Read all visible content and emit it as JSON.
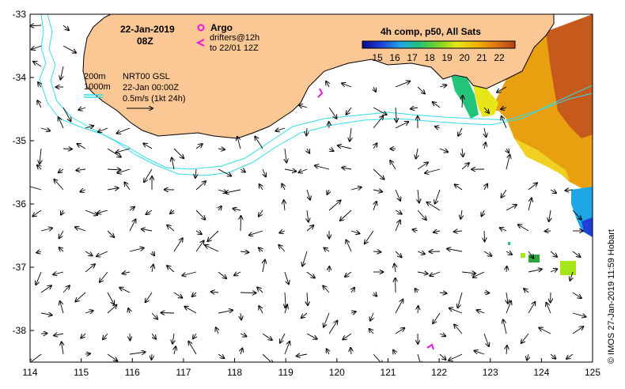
{
  "map": {
    "date": "22-Jan-2019",
    "time": "08Z",
    "legend": {
      "argo_label": "Argo",
      "drifters_line1": "drifters@12h",
      "drifters_line2": "to 22/01 12Z",
      "depth_200": "200m",
      "depth_1000": "1000m",
      "nrt_line1": "NRT00 GSL",
      "nrt_line2": "22-Jan 00:00Z",
      "speed_scale": "0.5m/s (1kt 24h)"
    },
    "colorbar": {
      "title": "4h comp, p50, All Sats",
      "ticks": [
        "15",
        "16",
        "17",
        "18",
        "19",
        "20",
        "21",
        "22"
      ]
    },
    "x_ticks": [
      "114",
      "115",
      "116",
      "117",
      "118",
      "119",
      "120",
      "121",
      "122",
      "123",
      "124",
      "125"
    ],
    "y_ticks": [
      "-33",
      "-34",
      "-35",
      "-36",
      "-37",
      "-38"
    ],
    "credit": "© IMOS 27-Jan-2019 11:59 Hobart",
    "colors": {
      "land": "#fac795",
      "contour": "#33dde6",
      "argo": "#e619d9",
      "text": "#000000"
    }
  }
}
